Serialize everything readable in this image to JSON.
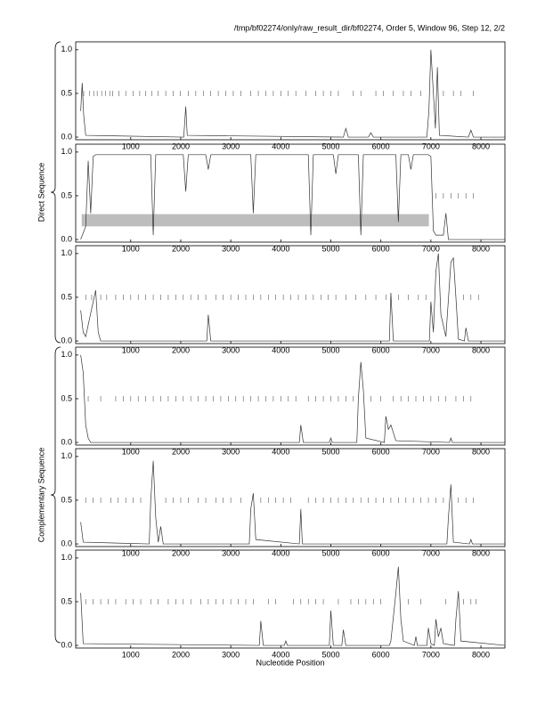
{
  "title": "/tmp/bf02274/only/raw_result_dir/bf02274, Order 5, Window 96, Step 12, 2/2",
  "xlabel": "Nucleotide Position",
  "sections": [
    {
      "label": "Direct Sequence"
    },
    {
      "label": "Complementary Sequence"
    }
  ],
  "chart_data": [
    {
      "type": "line",
      "xlim": [
        -100,
        8480
      ],
      "ylim": [
        -0.03,
        1.09
      ],
      "xticks": [
        1000,
        2000,
        3000,
        4000,
        5000,
        6000,
        7000,
        8000
      ],
      "yticks": [
        {
          "value": 0,
          "label": "0.0"
        },
        {
          "value": 0.5,
          "label": "0.5"
        },
        {
          "value": 1,
          "label": "1.0"
        }
      ],
      "x": [
        0,
        30,
        60,
        100,
        2060,
        2100,
        2130,
        5250,
        5300,
        5350,
        5750,
        5800,
        5850,
        6920,
        6960,
        7000,
        7050,
        7090,
        7130,
        7170,
        7750,
        7800,
        7850,
        8480
      ],
      "series": [
        {
          "color": "#333333",
          "values": [
            0.3,
            0.62,
            0.25,
            0.02,
            0.0,
            0.35,
            0.02,
            0.0,
            0.1,
            0.0,
            0.0,
            0.05,
            0.0,
            0.0,
            0.3,
            1.0,
            0.5,
            0.1,
            0.8,
            0.02,
            0.0,
            0.08,
            0.0,
            0.0
          ]
        }
      ],
      "stops": [
        60,
        180,
        260,
        330,
        420,
        500,
        580,
        640,
        760,
        900,
        1050,
        1180,
        1300,
        1420,
        1550,
        1700,
        1850,
        1990,
        2150,
        2300,
        2450,
        2600,
        2750,
        2900,
        3050,
        3200,
        3400,
        3550,
        3700,
        3850,
        4000,
        4150,
        4300,
        4500,
        4700,
        4850,
        5000,
        5150,
        5450,
        5600,
        5900,
        6050,
        6250,
        6450,
        6600,
        6800,
        7250,
        7450,
        7600,
        7850
      ]
    },
    {
      "type": "line",
      "xlim": [
        -100,
        8480
      ],
      "ylim": [
        -0.03,
        1.09
      ],
      "xticks": [
        1000,
        2000,
        3000,
        4000,
        5000,
        6000,
        7000,
        8000
      ],
      "yticks": [
        {
          "value": 0,
          "label": "0.0"
        },
        {
          "value": 0.5,
          "label": "0.5"
        },
        {
          "value": 1,
          "label": "1.0"
        }
      ],
      "x": [
        0,
        100,
        150,
        200,
        250,
        300,
        1400,
        1450,
        1500,
        2050,
        2100,
        2150,
        2500,
        2550,
        2600,
        3400,
        3450,
        3500,
        4550,
        4600,
        4650,
        5050,
        5100,
        5150,
        5550,
        5600,
        5650,
        6300,
        6350,
        6400,
        6550,
        6600,
        6650,
        6950,
        7000,
        7050,
        7100,
        7250,
        7300,
        7350,
        8480
      ],
      "series": [
        {
          "color": "#333333",
          "values": [
            0.0,
            0.15,
            0.9,
            0.3,
            0.95,
            0.97,
            0.97,
            0.05,
            0.97,
            0.97,
            0.55,
            0.97,
            0.97,
            0.8,
            0.97,
            0.97,
            0.3,
            0.97,
            0.97,
            0.05,
            0.97,
            0.97,
            0.75,
            0.97,
            0.97,
            0.05,
            0.97,
            0.97,
            0.2,
            0.97,
            0.97,
            0.8,
            0.97,
            0.97,
            0.95,
            0.1,
            0.05,
            0.05,
            0.3,
            0.0,
            0.0
          ]
        }
      ],
      "genes": [
        [
          20,
          6960
        ]
      ],
      "stops": [
        7100,
        7250,
        7400,
        7550,
        7700,
        7850
      ]
    },
    {
      "type": "line",
      "xlim": [
        -100,
        8480
      ],
      "ylim": [
        -0.03,
        1.09
      ],
      "xticks": [
        1000,
        2000,
        3000,
        4000,
        5000,
        6000,
        7000,
        8000
      ],
      "yticks": [
        {
          "value": 0,
          "label": "0.0"
        },
        {
          "value": 0.5,
          "label": "0.5"
        },
        {
          "value": 1,
          "label": "1.0"
        }
      ],
      "x": [
        0,
        50,
        100,
        250,
        300,
        350,
        400,
        2520,
        2550,
        2600,
        6170,
        6200,
        6250,
        6970,
        7000,
        7050,
        7100,
        7150,
        7200,
        7300,
        7400,
        7450,
        7500,
        7550,
        7670,
        7700,
        7750,
        8480
      ],
      "series": [
        {
          "color": "#333333",
          "values": [
            0.35,
            0.1,
            0.05,
            0.45,
            0.58,
            0.1,
            0.0,
            0.0,
            0.3,
            0.0,
            0.0,
            0.55,
            0.0,
            0.0,
            0.45,
            0.1,
            0.8,
            1.0,
            0.3,
            0.05,
            0.9,
            0.95,
            0.5,
            0.02,
            0.0,
            0.15,
            0.0,
            0.0
          ]
        }
      ],
      "stops": [
        100,
        220,
        400,
        520,
        700,
        850,
        1000,
        1150,
        1300,
        1450,
        1600,
        1750,
        1900,
        2050,
        2200,
        2350,
        2500,
        2700,
        2850,
        3000,
        3150,
        3300,
        3450,
        3600,
        3750,
        3900,
        4050,
        4200,
        4350,
        4500,
        4650,
        4800,
        4950,
        5100,
        5300,
        5500,
        5700,
        5900,
        6100,
        6350,
        6550,
        6750,
        6900,
        7650,
        7800,
        7950
      ]
    },
    {
      "type": "line",
      "xlim": [
        -100,
        8480
      ],
      "ylim": [
        -0.03,
        1.09
      ],
      "xticks": [
        1000,
        2000,
        3000,
        4000,
        5000,
        6000,
        7000,
        8000
      ],
      "yticks": [
        {
          "value": 0,
          "label": "0.0"
        },
        {
          "value": 0.5,
          "label": "0.5"
        },
        {
          "value": 1,
          "label": "1.0"
        }
      ],
      "x": [
        0,
        50,
        100,
        150,
        200,
        4370,
        4400,
        4450,
        4970,
        5000,
        5030,
        5520,
        5550,
        5600,
        5650,
        5700,
        6070,
        6100,
        6150,
        6200,
        6300,
        7370,
        7400,
        7430,
        8480
      ],
      "series": [
        {
          "color": "#333333",
          "values": [
            1.0,
            0.8,
            0.2,
            0.05,
            0.0,
            0.0,
            0.2,
            0.0,
            0.0,
            0.05,
            0.0,
            0.0,
            0.5,
            0.92,
            0.6,
            0.05,
            0.0,
            0.3,
            0.15,
            0.2,
            0.02,
            0.0,
            0.05,
            0.0,
            0.0
          ]
        }
      ],
      "stops": [
        150,
        400,
        700,
        850,
        1000,
        1150,
        1300,
        1450,
        1600,
        1750,
        1900,
        2050,
        2200,
        2350,
        2500,
        2650,
        2800,
        2950,
        3100,
        3250,
        3400,
        3550,
        3700,
        3850,
        4000,
        4150,
        4300,
        4550,
        4700,
        4850,
        5000,
        5150,
        5300,
        5450,
        5800,
        6000,
        6250,
        6400,
        6550,
        6700,
        6850,
        7000,
        7150,
        7300,
        7500,
        7650,
        7800
      ]
    },
    {
      "type": "line",
      "xlim": [
        -100,
        8480
      ],
      "ylim": [
        -0.03,
        1.09
      ],
      "xticks": [
        1000,
        2000,
        3000,
        4000,
        5000,
        6000,
        7000,
        8000
      ],
      "yticks": [
        {
          "value": 0,
          "label": "0.0"
        },
        {
          "value": 0.5,
          "label": "0.5"
        },
        {
          "value": 1,
          "label": "1.0"
        }
      ],
      "x": [
        0,
        50,
        1370,
        1400,
        1450,
        1500,
        1550,
        1600,
        1650,
        3370,
        3400,
        3450,
        3500,
        4370,
        4400,
        4430,
        7320,
        7350,
        7400,
        7450,
        7770,
        7800,
        7830,
        8480
      ],
      "series": [
        {
          "color": "#333333",
          "values": [
            0.25,
            0.02,
            0.0,
            0.5,
            0.95,
            0.3,
            0.02,
            0.2,
            0.0,
            0.0,
            0.4,
            0.58,
            0.05,
            0.0,
            0.4,
            0.0,
            0.0,
            0.3,
            0.68,
            0.02,
            0.0,
            0.05,
            0.0,
            0.0
          ]
        }
      ],
      "stops": [
        100,
        250,
        400,
        600,
        750,
        900,
        1050,
        1200,
        1700,
        1850,
        2000,
        2150,
        2350,
        2500,
        2700,
        2850,
        3000,
        3200,
        3600,
        3750,
        3900,
        4050,
        4200,
        4550,
        4700,
        4850,
        5000,
        5150,
        5300,
        5450,
        5600,
        5750,
        5900,
        6050,
        6200,
        6350,
        6500,
        6650,
        6800,
        6950,
        7100,
        7250,
        7550,
        7700,
        7850
      ]
    },
    {
      "type": "line",
      "xlim": [
        -100,
        8480
      ],
      "ylim": [
        -0.03,
        1.09
      ],
      "xticks": [
        1000,
        2000,
        3000,
        4000,
        5000,
        6000,
        7000,
        8000
      ],
      "yticks": [
        {
          "value": 0,
          "label": "0.0"
        },
        {
          "value": 0.5,
          "label": "0.5"
        },
        {
          "value": 1,
          "label": "1.0"
        }
      ],
      "x": [
        0,
        50,
        3570,
        3600,
        3650,
        4070,
        4100,
        4130,
        4970,
        5000,
        5050,
        5220,
        5250,
        5300,
        6170,
        6200,
        6300,
        6350,
        6400,
        6450,
        6670,
        6700,
        6730,
        6920,
        6950,
        7000,
        7070,
        7100,
        7150,
        7200,
        7250,
        7470,
        7500,
        7550,
        7600,
        8480
      ],
      "series": [
        {
          "color": "#333333",
          "values": [
            0.6,
            0.02,
            0.0,
            0.28,
            0.0,
            0.0,
            0.05,
            0.0,
            0.0,
            0.4,
            0.0,
            0.0,
            0.18,
            0.0,
            0.0,
            0.05,
            0.6,
            0.9,
            0.3,
            0.05,
            0.0,
            0.1,
            0.0,
            0.0,
            0.2,
            0.02,
            0.0,
            0.3,
            0.1,
            0.2,
            0.02,
            0.0,
            0.3,
            0.62,
            0.05,
            0.0
          ]
        }
      ],
      "stops": [
        100,
        250,
        400,
        550,
        700,
        900,
        1050,
        1200,
        1400,
        1550,
        1750,
        1900,
        2050,
        2200,
        2400,
        2550,
        2700,
        2850,
        3000,
        3150,
        3300,
        3450,
        3750,
        3900,
        4250,
        4400,
        4550,
        4700,
        4850,
        5150,
        5400,
        5550,
        5700,
        5850,
        6000,
        6550,
        6800,
        7300,
        7650,
        7800,
        7900
      ]
    }
  ]
}
